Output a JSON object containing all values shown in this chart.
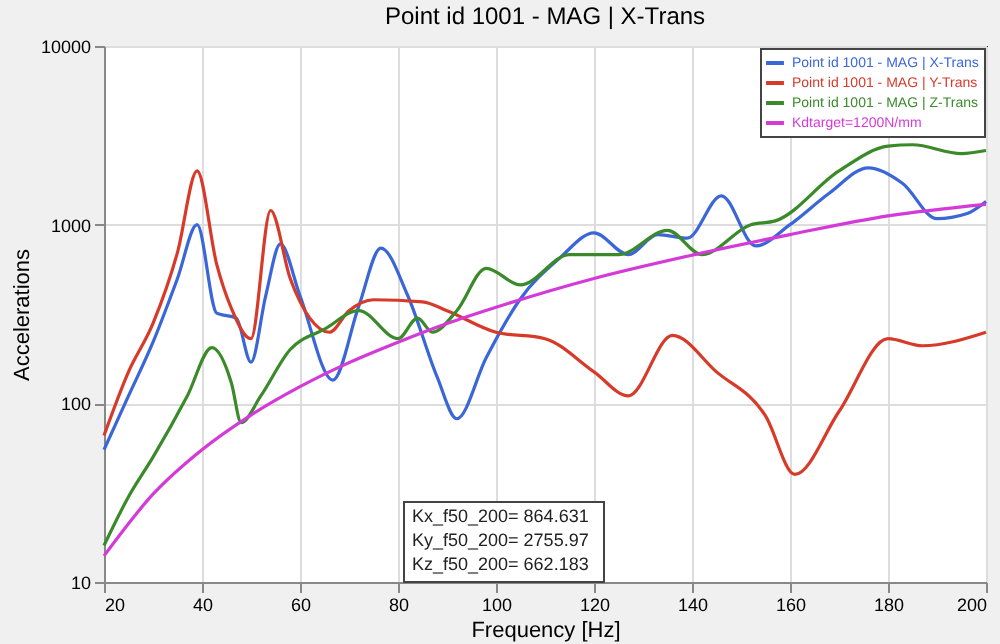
{
  "chart_data": {
    "type": "line",
    "title": "Point id 1001 - MAG | X-Trans",
    "xlabel": "Frequency [Hz]",
    "ylabel": "Accelerations",
    "xlim": [
      20,
      200
    ],
    "xticks": [
      20,
      40,
      60,
      80,
      100,
      120,
      140,
      160,
      180,
      200
    ],
    "ylim": [
      10,
      10000
    ],
    "yticks": [
      10,
      100,
      1000,
      10000
    ],
    "log": "y",
    "grid": true,
    "legend": "top right",
    "annotations": [
      "Kx_f50_200= 864.631",
      "Ky_f50_200= 2755.97",
      "Kz_f50_200= 662.183"
    ],
    "series": [
      {
        "name": "Point id 1001 - MAG | X-Trans",
        "color": "#3a66d8",
        "x": [
          20,
          25,
          30,
          35,
          39,
          43,
          47,
          50,
          53,
          56,
          60,
          66.7,
          72,
          76.5,
          82,
          88,
          92,
          98,
          105,
          113,
          120,
          127,
          133,
          139,
          146,
          153,
          160,
          168,
          176,
          183,
          190,
          196,
          200
        ],
        "values": [
          55,
          110,
          220,
          500,
          1000,
          320,
          300,
          170,
          400,
          780,
          400,
          135,
          350,
          740,
          400,
          140,
          82,
          180,
          385,
          650,
          900,
          680,
          880,
          840,
          1450,
          760,
          1000,
          1500,
          2080,
          1700,
          1080,
          1150,
          1350
        ]
      },
      {
        "name": "Point id 1001 - MAG | Y-Trans",
        "color": "#d83a2a",
        "x": [
          20,
          25,
          30,
          35,
          39,
          43,
          46,
          50,
          54,
          58,
          62,
          66,
          70,
          75,
          85,
          90,
          100,
          110,
          120,
          127,
          136,
          145,
          155,
          161,
          170,
          180,
          187,
          200
        ],
        "values": [
          66,
          150,
          280,
          700,
          2000,
          600,
          340,
          230,
          1200,
          500,
          300,
          250,
          330,
          380,
          370,
          330,
          250,
          230,
          150,
          110,
          240,
          150,
          85,
          40,
          90,
          230,
          210,
          250
        ]
      },
      {
        "name": "Point id 1001 - MAG | Z-Trans",
        "color": "#3a8a2a",
        "x": [
          20,
          25,
          30,
          37,
          42,
          46,
          48,
          52,
          58,
          65,
          72,
          80,
          84,
          87,
          92,
          98,
          105,
          115,
          125,
          135,
          142,
          152,
          157,
          170,
          180,
          185,
          195,
          200
        ],
        "values": [
          16,
          30,
          50,
          110,
          205,
          130,
          78,
          110,
          200,
          260,
          330,
          230,
          300,
          250,
          330,
          570,
          460,
          680,
          680,
          930,
          680,
          1000,
          1050,
          2000,
          2750,
          2800,
          2500,
          2600
        ]
      },
      {
        "name": "Kdtarget=1200N/mm",
        "color": "#d43ad8",
        "x": [
          20,
          30,
          40,
          50,
          60,
          70,
          80,
          90,
          100,
          120,
          140,
          160,
          180,
          200
        ],
        "values": [
          14,
          31,
          55,
          86,
          124,
          169,
          220,
          280,
          345,
          500,
          675,
          880,
          1120,
          1300
        ]
      }
    ]
  }
}
